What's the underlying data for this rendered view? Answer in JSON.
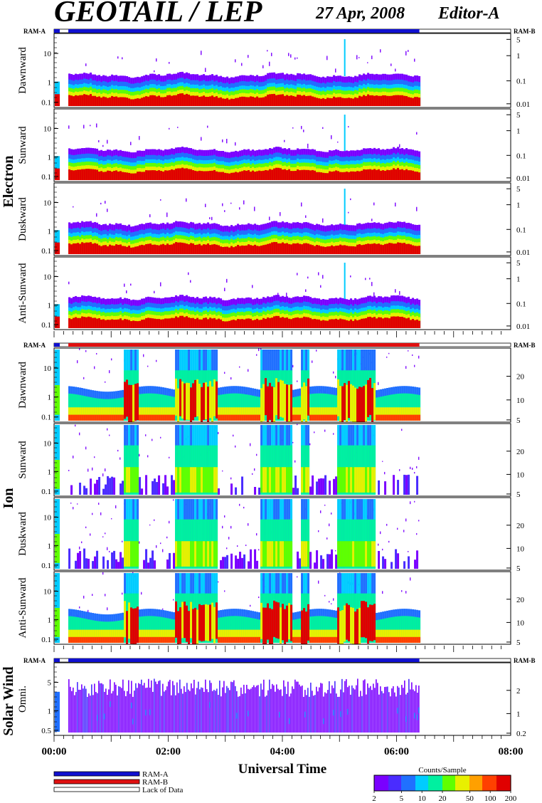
{
  "header": {
    "title": "GEOTAIL / LEP",
    "date": "27 Apr, 2008",
    "editor": "Editor-A"
  },
  "colors": {
    "ram_a": "#1010d0",
    "ram_b": "#e01010",
    "lack_of_data": "#ffffff",
    "scale": [
      "#7a00ff",
      "#4a2cff",
      "#2070ff",
      "#00ccff",
      "#00f0a0",
      "#60ff00",
      "#e8f000",
      "#ffa000",
      "#ff4000",
      "#e00000"
    ]
  },
  "mode_labels": {
    "left": "RAM-A",
    "right": "RAM-B"
  },
  "groups": [
    {
      "name": "Electron",
      "mode_bar": "RAM-A",
      "panels": [
        {
          "label": "Dawnward",
          "yticks": [
            "10",
            "1",
            "0.1"
          ],
          "rticks": [
            "5",
            "1",
            "0.1",
            "0.01"
          ]
        },
        {
          "label": "Sunward",
          "yticks": [
            "10",
            "1",
            "0.1"
          ],
          "rticks": [
            "5",
            "1",
            "0.1",
            "0.01"
          ]
        },
        {
          "label": "Duskward",
          "yticks": [
            "10",
            "1",
            "0.1"
          ],
          "rticks": [
            "5",
            "1",
            "0.1",
            "0.01"
          ]
        },
        {
          "label": "Anti-Sunward",
          "yticks": [
            "10",
            "1",
            "0.1"
          ],
          "rticks": [
            "5",
            "1",
            "0.1",
            "0.01"
          ]
        }
      ]
    },
    {
      "name": "Ion",
      "mode_bar": "RAM-B",
      "panels": [
        {
          "label": "Dawnward",
          "yticks": [
            "10",
            "1",
            "0.1"
          ],
          "rticks": [
            "20",
            "10",
            "5"
          ]
        },
        {
          "label": "Sunward",
          "yticks": [
            "10",
            "1",
            "0.1"
          ],
          "rticks": [
            "20",
            "10",
            "5"
          ]
        },
        {
          "label": "Duskward",
          "yticks": [
            "10",
            "1",
            "0.1"
          ],
          "rticks": [
            "20",
            "10",
            "5"
          ]
        },
        {
          "label": "Anti-Sunward",
          "yticks": [
            "10",
            "1",
            "0.1"
          ],
          "rticks": [
            "20",
            "10",
            "5"
          ]
        }
      ]
    },
    {
      "name": "Solar Wind",
      "mode_bar": "RAM-A",
      "panels": [
        {
          "label": "Omni.",
          "yticks": [
            "5",
            "1",
            "0.5"
          ],
          "rticks": [
            "2",
            "1",
            "0.2"
          ]
        }
      ]
    }
  ],
  "chart_data": {
    "type": "heatmap",
    "x_axis": {
      "label": "Universal Time",
      "ticks": [
        "00:00",
        "02:00",
        "04:00",
        "06:00",
        "08:00"
      ],
      "range_hours": [
        0,
        8
      ],
      "data_start_hours": 0.25,
      "data_end_hours": 6.4,
      "gap_hours": [
        0.1,
        0.25
      ]
    },
    "legend": {
      "title": "Counts/Sample",
      "ticks": [
        "2",
        "5",
        "10",
        "20",
        "50",
        "100",
        "200"
      ]
    },
    "mode_legend": [
      "RAM-A",
      "RAM-B",
      "Lack of Data"
    ]
  }
}
